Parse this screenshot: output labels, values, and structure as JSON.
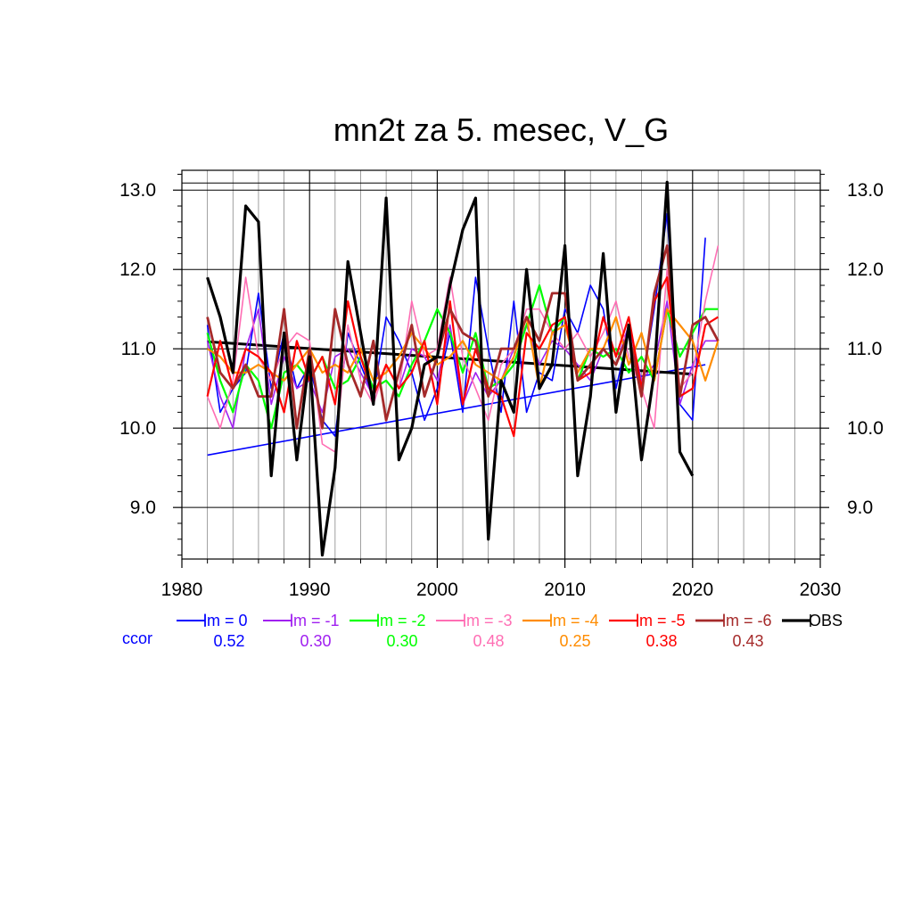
{
  "chart_data": {
    "type": "line",
    "title": "mn2t za 5. mesec, V_G",
    "xlabel": "",
    "ylabel": "",
    "xlim": [
      1980,
      2030
    ],
    "ylim": [
      8.35,
      13.25
    ],
    "x_ticks": [
      1980,
      1990,
      2000,
      2010,
      2020,
      2030
    ],
    "x_tick_labels": [
      "1980",
      "1990",
      "2000",
      "2010",
      "2020",
      "2030"
    ],
    "y_ticks": [
      9.0,
      10.0,
      11.0,
      12.0,
      13.0
    ],
    "y_tick_labels": [
      "9.0",
      "10.0",
      "11.0",
      "12.0",
      "13.0"
    ],
    "grid": true,
    "legend_position": "bottom",
    "ccor_label": "ccor",
    "ccor_color": "#0000ff",
    "series": [
      {
        "name": "lm = 0",
        "color": "#0000ff",
        "width": 1.6,
        "ccor": "0.52",
        "x_start": 1982,
        "values": [
          11.3,
          10.2,
          10.5,
          10.7,
          11.7,
          10.5,
          11.2,
          10.5,
          10.8,
          10.1,
          9.9,
          11.2,
          10.8,
          10.4,
          11.4,
          11.1,
          10.7,
          10.1,
          10.5,
          11.2,
          10.2,
          11.9,
          11.0,
          10.2,
          11.6,
          10.2,
          10.7,
          10.6,
          11.5,
          11.2,
          11.8,
          11.5,
          10.5,
          11.2,
          10.5,
          11.5,
          12.7,
          10.3,
          10.1,
          12.4
        ]
      },
      {
        "name": "lm = -1",
        "color": "#a020f0",
        "width": 1.6,
        "ccor": "0.30",
        "x_start": 1982,
        "values": [
          11.1,
          10.4,
          10.0,
          11.0,
          11.5,
          10.3,
          10.9,
          10.5,
          10.6,
          10.2,
          10.9,
          11.0,
          10.7,
          10.4,
          10.8,
          10.5,
          11.0,
          10.9,
          10.6,
          11.3,
          10.3,
          10.7,
          10.4,
          10.6,
          11.0,
          11.3,
          10.8,
          11.1,
          11.0,
          10.8,
          10.6,
          11.0,
          10.8,
          11.3,
          10.6,
          10.8,
          11.6,
          10.3,
          10.8,
          11.1,
          11.1
        ]
      },
      {
        "name": "lm = -2",
        "color": "#00ff00",
        "width": 2.2,
        "ccor": "0.30",
        "x_start": 1982,
        "values": [
          11.2,
          10.6,
          10.2,
          10.8,
          10.6,
          10.0,
          10.7,
          10.8,
          10.6,
          10.9,
          10.5,
          10.6,
          10.9,
          10.5,
          10.6,
          10.4,
          10.8,
          11.1,
          11.5,
          11.2,
          10.7,
          11.2,
          10.5,
          10.6,
          10.8,
          11.3,
          11.8,
          11.2,
          11.4,
          10.6,
          11.0,
          10.9,
          11.0,
          10.7,
          10.9,
          10.6,
          11.5,
          10.9,
          11.2,
          11.5,
          11.5
        ]
      },
      {
        "name": "lm = -3",
        "color": "#ff6eb4",
        "width": 1.6,
        "ccor": "0.48",
        "x_start": 1982,
        "values": [
          10.4,
          10.0,
          10.6,
          11.9,
          10.9,
          10.6,
          11.0,
          11.2,
          11.1,
          9.8,
          9.7,
          11.3,
          10.6,
          10.3,
          10.8,
          10.5,
          11.6,
          10.9,
          11.0,
          11.9,
          10.9,
          10.5,
          10.1,
          10.8,
          11.0,
          11.5,
          11.5,
          11.2,
          11.0,
          11.2,
          10.9,
          11.2,
          11.6,
          10.9,
          10.5,
          10.0,
          12.0,
          10.5,
          10.7,
          11.6,
          12.3
        ]
      },
      {
        "name": "lm = -4",
        "color": "#ff8c00",
        "width": 2.2,
        "ccor": "0.25",
        "x_start": 1982,
        "values": [
          11.0,
          10.9,
          10.7,
          10.7,
          10.8,
          10.7,
          10.6,
          10.8,
          11.0,
          10.7,
          10.8,
          10.7,
          11.0,
          10.6,
          10.7,
          10.9,
          11.2,
          11.0,
          10.8,
          10.9,
          11.1,
          10.8,
          10.7,
          10.6,
          10.9,
          11.4,
          10.5,
          11.2,
          11.3,
          10.7,
          11.0,
          11.0,
          11.4,
          10.8,
          11.2,
          10.6,
          11.5,
          11.3,
          11.1,
          10.6,
          11.1
        ]
      },
      {
        "name": "lm = -5",
        "color": "#ff0000",
        "width": 2.2,
        "ccor": "0.38",
        "x_start": 1982,
        "values": [
          10.4,
          11.1,
          10.5,
          11.0,
          10.9,
          10.7,
          10.2,
          11.1,
          10.6,
          10.9,
          10.3,
          11.6,
          10.9,
          10.4,
          10.8,
          10.5,
          10.7,
          11.1,
          10.3,
          11.6,
          10.3,
          11.0,
          10.5,
          10.4,
          9.9,
          11.2,
          11.0,
          11.3,
          11.4,
          10.6,
          10.7,
          11.4,
          10.9,
          11.4,
          10.5,
          11.6,
          11.9,
          10.4,
          10.5,
          11.3,
          11.4
        ]
      },
      {
        "name": "lm = -6",
        "color": "#a52a2a",
        "width": 2.8,
        "ccor": "0.43",
        "x_start": 1982,
        "values": [
          11.4,
          10.7,
          10.5,
          10.8,
          10.4,
          10.4,
          11.5,
          10.0,
          11.0,
          10.0,
          11.5,
          10.8,
          10.4,
          11.1,
          10.1,
          10.7,
          11.3,
          10.4,
          10.9,
          11.5,
          11.2,
          11.1,
          10.4,
          11.0,
          11.0,
          11.4,
          11.1,
          11.7,
          11.7,
          10.6,
          10.8,
          11.0,
          10.8,
          11.2,
          10.4,
          11.7,
          12.3,
          10.4,
          11.3,
          11.4,
          11.1
        ]
      },
      {
        "name": "OBS",
        "color": "#000000",
        "width": 3.2,
        "ccor": "",
        "x_start": 1982,
        "values": [
          11.9,
          11.4,
          10.7,
          12.8,
          12.6,
          9.4,
          11.2,
          9.6,
          10.9,
          8.4,
          9.5,
          12.1,
          11.2,
          10.3,
          12.9,
          9.6,
          10.0,
          10.8,
          10.9,
          11.8,
          12.5,
          12.9,
          8.6,
          10.6,
          10.2,
          12.0,
          10.5,
          10.8,
          12.3,
          9.4,
          10.4,
          12.2,
          10.2,
          11.3,
          9.6,
          10.7,
          13.1,
          9.7,
          9.4
        ]
      }
    ],
    "trend_lines": [
      {
        "name": "lm = 0 trend",
        "color": "#0000ff",
        "width": 1.6,
        "x": [
          1982,
          2021
        ],
        "y": [
          9.66,
          10.8
        ]
      },
      {
        "name": "OBS trend",
        "color": "#000000",
        "width": 3.0,
        "x": [
          1982,
          2020
        ],
        "y": [
          11.09,
          10.68
        ]
      }
    ]
  }
}
